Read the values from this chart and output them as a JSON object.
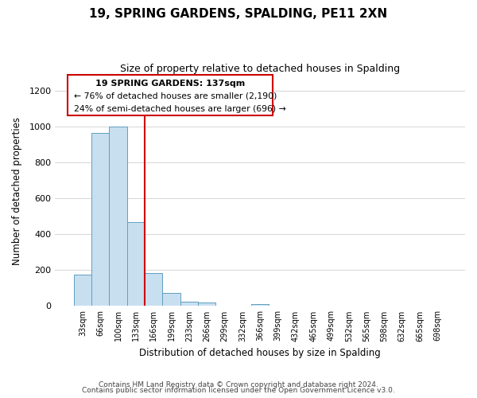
{
  "title": "19, SPRING GARDENS, SPALDING, PE11 2XN",
  "subtitle": "Size of property relative to detached houses in Spalding",
  "xlabel": "Distribution of detached houses by size in Spalding",
  "ylabel": "Number of detached properties",
  "bar_labels": [
    "33sqm",
    "66sqm",
    "100sqm",
    "133sqm",
    "166sqm",
    "199sqm",
    "233sqm",
    "266sqm",
    "299sqm",
    "332sqm",
    "366sqm",
    "399sqm",
    "432sqm",
    "465sqm",
    "499sqm",
    "532sqm",
    "565sqm",
    "598sqm",
    "632sqm",
    "665sqm",
    "698sqm"
  ],
  "bar_values": [
    175,
    965,
    1000,
    465,
    185,
    75,
    22,
    18,
    0,
    0,
    12,
    0,
    0,
    0,
    0,
    0,
    0,
    0,
    0,
    0,
    0
  ],
  "bar_color": "#c8dff0",
  "bar_edge_color": "#5f9fbf",
  "ylim": [
    0,
    1280
  ],
  "yticks": [
    0,
    200,
    400,
    600,
    800,
    1000,
    1200
  ],
  "property_label": "19 SPRING GARDENS: 137sqm",
  "annotation_line1": "← 76% of detached houses are smaller (2,190)",
  "annotation_line2": "24% of semi-detached houses are larger (696) →",
  "annotation_box_color": "#ffffff",
  "annotation_box_edge_color": "#cc0000",
  "footer_line1": "Contains HM Land Registry data © Crown copyright and database right 2024.",
  "footer_line2": "Contains public sector information licensed under the Open Government Licence v3.0.",
  "property_bar_index": 3,
  "vline_color": "#cc0000"
}
